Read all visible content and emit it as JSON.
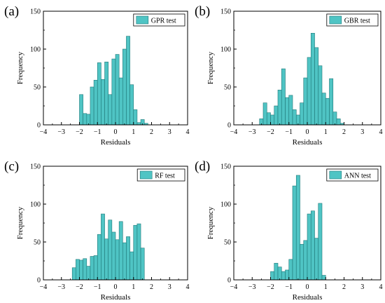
{
  "chart_data": [
    {
      "type": "bar",
      "panel_label": "(a)",
      "legend": "GPR test",
      "xlabel": "Residuals",
      "ylabel": "Frequency",
      "xlim": [
        -4,
        4
      ],
      "ylim": [
        0,
        150
      ],
      "xticks": [
        -4,
        -3,
        -2,
        -1,
        0,
        1,
        2,
        3,
        4
      ],
      "yticks": [
        0,
        50,
        100,
        150
      ],
      "bin_width": 0.2,
      "bin_centers": [
        -1.9,
        -1.7,
        -1.5,
        -1.3,
        -1.1,
        -0.9,
        -0.7,
        -0.5,
        -0.3,
        -0.1,
        0.1,
        0.3,
        0.5,
        0.7,
        0.9,
        1.1,
        1.3,
        1.5,
        1.7
      ],
      "values": [
        40,
        15,
        14,
        50,
        59,
        82,
        60,
        83,
        40,
        87,
        93,
        62,
        100,
        117,
        53,
        20,
        3,
        7,
        2
      ],
      "color": "#4fc4c4"
    },
    {
      "type": "bar",
      "panel_label": "(b)",
      "legend": "GBR test",
      "xlabel": "Residuals",
      "ylabel": "Frequency",
      "xlim": [
        -4,
        4
      ],
      "ylim": [
        0,
        150
      ],
      "xticks": [
        -4,
        -3,
        -2,
        -1,
        0,
        1,
        2,
        3,
        4
      ],
      "yticks": [
        0,
        50,
        100,
        150
      ],
      "bin_width": 0.2,
      "bin_centers": [
        -2.5,
        -2.3,
        -2.1,
        -1.9,
        -1.7,
        -1.5,
        -1.3,
        -1.1,
        -0.9,
        -0.7,
        -0.5,
        -0.3,
        -0.1,
        0.1,
        0.3,
        0.5,
        0.7,
        0.9,
        1.1,
        1.3,
        1.5,
        1.7,
        1.9
      ],
      "values": [
        8,
        29,
        16,
        13,
        25,
        46,
        74,
        36,
        39,
        20,
        13,
        29,
        62,
        89,
        121,
        102,
        78,
        42,
        35,
        61,
        17,
        8,
        2
      ],
      "color": "#4fc4c4"
    },
    {
      "type": "bar",
      "panel_label": "(c)",
      "legend": "RF test",
      "xlabel": "Residuals",
      "ylabel": "Frequency",
      "xlim": [
        -4,
        4
      ],
      "ylim": [
        0,
        150
      ],
      "xticks": [
        -4,
        -3,
        -2,
        -1,
        0,
        1,
        2,
        3,
        4
      ],
      "yticks": [
        0,
        50,
        100,
        150
      ],
      "bin_width": 0.2,
      "bin_centers": [
        -2.3,
        -2.1,
        -1.9,
        -1.7,
        -1.5,
        -1.3,
        -1.1,
        -0.9,
        -0.7,
        -0.5,
        -0.3,
        -0.1,
        0.1,
        0.3,
        0.5,
        0.7,
        0.9,
        1.1,
        1.3,
        1.5
      ],
      "values": [
        16,
        27,
        26,
        28,
        18,
        31,
        32,
        60,
        87,
        54,
        79,
        63,
        53,
        77,
        49,
        57,
        37,
        72,
        74,
        42
      ],
      "color": "#4fc4c4"
    },
    {
      "type": "bar",
      "panel_label": "(d)",
      "legend": "ANN test",
      "xlabel": "Residuals",
      "ylabel": "Frequency",
      "xlim": [
        -4,
        4
      ],
      "ylim": [
        0,
        150
      ],
      "xticks": [
        -4,
        -3,
        -2,
        -1,
        0,
        1,
        2,
        3,
        4
      ],
      "yticks": [
        0,
        50,
        100,
        150
      ],
      "bin_width": 0.2,
      "bin_centers": [
        -1.9,
        -1.7,
        -1.5,
        -1.3,
        -1.1,
        -0.9,
        -0.7,
        -0.5,
        -0.3,
        -0.1,
        0.1,
        0.3,
        0.5,
        0.7,
        0.9,
        1.1,
        1.3
      ],
      "values": [
        11,
        22,
        17,
        11,
        13,
        27,
        124,
        138,
        47,
        52,
        87,
        91,
        55,
        101,
        6,
        0,
        0
      ],
      "color": "#4fc4c4"
    }
  ]
}
